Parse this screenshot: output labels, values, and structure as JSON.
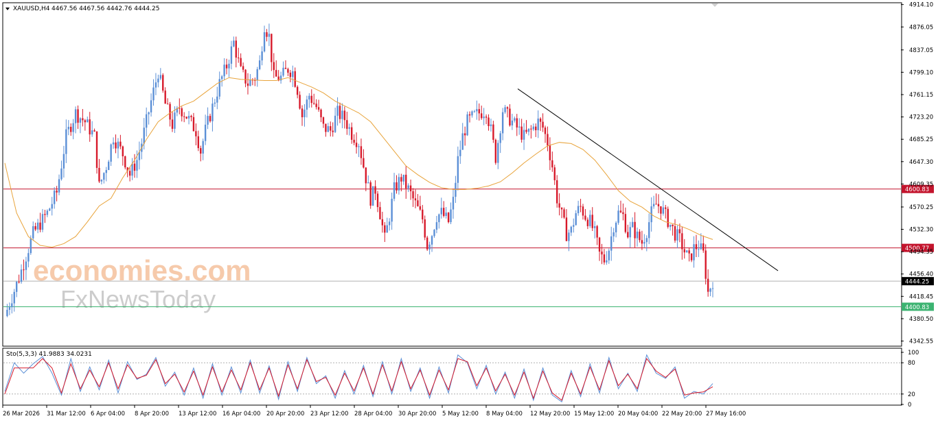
{
  "header": {
    "symbol": "XAUUSD,H4",
    "ohlc": "4467.56 4467.56 4442.76 4444.25"
  },
  "indicator": {
    "label": "Sto(5,3,3) 41.9883 34.0231",
    "levels": [
      "100",
      "80",
      "20",
      "0"
    ]
  },
  "watermark": {
    "line1": "economies.com",
    "line2": "FxNewsToday"
  },
  "colors": {
    "bull": "#5b8fd6",
    "bear": "#d7192a",
    "ma": "#e8a33a",
    "resistance": "#c3142d",
    "support": "#3cb371",
    "trendline": "#000000",
    "stoch_main": "#5b8fd6",
    "stoch_signal": "#d7192a"
  },
  "chart_data": {
    "type": "candlestick",
    "y_range": [
      4335,
      4916
    ],
    "y_ticks": [
      "4914.10",
      "4876.05",
      "4837.05",
      "4799.10",
      "4761.15",
      "4723.20",
      "4685.25",
      "4647.30",
      "4609.35",
      "4570.25",
      "4532.30",
      "4494.35",
      "4456.40",
      "4418.45",
      "4380.50",
      "4342.55"
    ],
    "x_labels": [
      "26 Mar 2026",
      "31 Mar 12:00",
      "6 Apr 04:00",
      "8 Apr 20:00",
      "13 Apr 12:00",
      "16 Apr 04:00",
      "20 Apr 20:00",
      "23 Apr 12:00",
      "28 Apr 04:00",
      "30 Apr 20:00",
      "5 May 12:00",
      "8 May 04:00",
      "12 May 20:00",
      "15 May 12:00",
      "20 May 04:00",
      "22 May 20:00",
      "27 May 16:00"
    ],
    "horizontal_levels": [
      {
        "value": 4600.83,
        "label": "4600.83",
        "role": "resistance"
      },
      {
        "value": 4500.77,
        "label": "4500.77",
        "role": "resistance"
      },
      {
        "value": 4444.25,
        "label": "4444.25",
        "role": "current"
      },
      {
        "value": 4400.83,
        "label": "4400.83",
        "role": "support"
      }
    ],
    "price_path": [
      [
        0,
        4385
      ],
      [
        6,
        4450
      ],
      [
        12,
        4525
      ],
      [
        18,
        4560
      ],
      [
        22,
        4595
      ],
      [
        26,
        4690
      ],
      [
        30,
        4730
      ],
      [
        34,
        4715
      ],
      [
        38,
        4690
      ],
      [
        40,
        4605
      ],
      [
        43,
        4640
      ],
      [
        46,
        4690
      ],
      [
        50,
        4660
      ],
      [
        53,
        4625
      ],
      [
        56,
        4650
      ],
      [
        58,
        4680
      ],
      [
        62,
        4750
      ],
      [
        65,
        4800
      ],
      [
        68,
        4745
      ],
      [
        71,
        4710
      ],
      [
        74,
        4740
      ],
      [
        77,
        4725
      ],
      [
        81,
        4700
      ],
      [
        83,
        4665
      ],
      [
        85,
        4700
      ],
      [
        88,
        4740
      ],
      [
        91,
        4780
      ],
      [
        94,
        4810
      ],
      [
        97,
        4850
      ],
      [
        100,
        4800
      ],
      [
        103,
        4780
      ],
      [
        106,
        4790
      ],
      [
        108,
        4815
      ],
      [
        110,
        4880
      ],
      [
        112,
        4860
      ],
      [
        114,
        4790
      ],
      [
        117,
        4790
      ],
      [
        120,
        4805
      ],
      [
        122,
        4800
      ],
      [
        124,
        4770
      ],
      [
        126,
        4725
      ],
      [
        129,
        4760
      ],
      [
        132,
        4740
      ],
      [
        135,
        4705
      ],
      [
        138,
        4700
      ],
      [
        141,
        4730
      ],
      [
        144,
        4720
      ],
      [
        147,
        4695
      ],
      [
        150,
        4680
      ],
      [
        153,
        4620
      ],
      [
        155,
        4585
      ],
      [
        157,
        4600
      ],
      [
        159,
        4560
      ],
      [
        161,
        4515
      ],
      [
        163,
        4555
      ],
      [
        165,
        4600
      ],
      [
        168,
        4620
      ],
      [
        171,
        4600
      ],
      [
        174,
        4575
      ],
      [
        177,
        4550
      ],
      [
        179,
        4505
      ],
      [
        181,
        4525
      ],
      [
        183,
        4555
      ],
      [
        185,
        4560
      ],
      [
        188,
        4545
      ],
      [
        190,
        4580
      ],
      [
        192,
        4650
      ],
      [
        194,
        4690
      ],
      [
        196,
        4715
      ],
      [
        199,
        4725
      ],
      [
        201,
        4730
      ],
      [
        204,
        4735
      ],
      [
        206,
        4700
      ],
      [
        208,
        4655
      ],
      [
        211,
        4735
      ],
      [
        214,
        4720
      ],
      [
        217,
        4705
      ],
      [
        220,
        4690
      ],
      [
        223,
        4700
      ],
      [
        226,
        4715
      ],
      [
        228,
        4705
      ],
      [
        230,
        4680
      ],
      [
        232,
        4640
      ],
      [
        234,
        4585
      ],
      [
        236,
        4555
      ],
      [
        238,
        4525
      ],
      [
        240,
        4530
      ],
      [
        242,
        4560
      ],
      [
        244,
        4570
      ],
      [
        246,
        4555
      ],
      [
        248,
        4545
      ],
      [
        250,
        4525
      ],
      [
        252,
        4490
      ],
      [
        254,
        4480
      ],
      [
        256,
        4500
      ],
      [
        258,
        4540
      ],
      [
        260,
        4560
      ],
      [
        262,
        4555
      ],
      [
        264,
        4525
      ],
      [
        266,
        4535
      ],
      [
        268,
        4520
      ],
      [
        270,
        4510
      ],
      [
        272,
        4530
      ],
      [
        274,
        4560
      ],
      [
        276,
        4575
      ],
      [
        278,
        4570
      ],
      [
        280,
        4555
      ],
      [
        282,
        4540
      ],
      [
        284,
        4525
      ],
      [
        286,
        4515
      ],
      [
        288,
        4495
      ],
      [
        290,
        4480
      ],
      [
        292,
        4500
      ],
      [
        294,
        4505
      ],
      [
        296,
        4490
      ],
      [
        298,
        4425
      ],
      [
        300,
        4445
      ],
      [
        301,
        4450
      ]
    ],
    "moving_average": [
      [
        0,
        4645
      ],
      [
        5,
        4560
      ],
      [
        10,
        4520
      ],
      [
        15,
        4505
      ],
      [
        20,
        4502
      ],
      [
        25,
        4508
      ],
      [
        30,
        4520
      ],
      [
        35,
        4545
      ],
      [
        40,
        4572
      ],
      [
        45,
        4585
      ],
      [
        50,
        4620
      ],
      [
        55,
        4650
      ],
      [
        60,
        4685
      ],
      [
        65,
        4715
      ],
      [
        70,
        4730
      ],
      [
        75,
        4742
      ],
      [
        80,
        4750
      ],
      [
        85,
        4765
      ],
      [
        90,
        4780
      ],
      [
        95,
        4790
      ],
      [
        100,
        4787
      ],
      [
        105,
        4786
      ],
      [
        110,
        4785
      ],
      [
        115,
        4785
      ],
      [
        120,
        4790
      ],
      [
        125,
        4782
      ],
      [
        130,
        4774
      ],
      [
        135,
        4764
      ],
      [
        140,
        4750
      ],
      [
        145,
        4740
      ],
      [
        150,
        4730
      ],
      [
        155,
        4715
      ],
      [
        160,
        4690
      ],
      [
        165,
        4665
      ],
      [
        170,
        4640
      ],
      [
        175,
        4625
      ],
      [
        180,
        4612
      ],
      [
        185,
        4603
      ],
      [
        190,
        4600
      ],
      [
        195,
        4600
      ],
      [
        200,
        4602
      ],
      [
        205,
        4606
      ],
      [
        210,
        4613
      ],
      [
        215,
        4628
      ],
      [
        220,
        4645
      ],
      [
        225,
        4660
      ],
      [
        230,
        4674
      ],
      [
        235,
        4680
      ],
      [
        240,
        4678
      ],
      [
        245,
        4668
      ],
      [
        250,
        4650
      ],
      [
        255,
        4625
      ],
      [
        260,
        4598
      ],
      [
        265,
        4580
      ],
      [
        270,
        4570
      ],
      [
        275,
        4555
      ],
      [
        280,
        4545
      ],
      [
        285,
        4540
      ],
      [
        290,
        4532
      ],
      [
        295,
        4522
      ],
      [
        300,
        4515
      ]
    ],
    "trendline": [
      [
        4754,
        4771
      ],
      [
        4459,
        4462
      ]
    ],
    "stochastic": {
      "main_label": "41.9883",
      "signal_label": "34.0231",
      "main": [
        [
          0,
          25
        ],
        [
          4,
          80
        ],
        [
          8,
          60
        ],
        [
          12,
          78
        ],
        [
          16,
          92
        ],
        [
          20,
          60
        ],
        [
          24,
          18
        ],
        [
          28,
          88
        ],
        [
          32,
          25
        ],
        [
          36,
          72
        ],
        [
          40,
          28
        ],
        [
          44,
          85
        ],
        [
          48,
          22
        ],
        [
          52,
          82
        ],
        [
          56,
          48
        ],
        [
          60,
          58
        ],
        [
          64,
          90
        ],
        [
          68,
          35
        ],
        [
          72,
          62
        ],
        [
          76,
          18
        ],
        [
          80,
          70
        ],
        [
          84,
          12
        ],
        [
          88,
          78
        ],
        [
          92,
          18
        ],
        [
          96,
          72
        ],
        [
          100,
          22
        ],
        [
          104,
          85
        ],
        [
          108,
          22
        ],
        [
          112,
          74
        ],
        [
          116,
          10
        ],
        [
          120,
          82
        ],
        [
          124,
          25
        ],
        [
          128,
          90
        ],
        [
          132,
          40
        ],
        [
          136,
          55
        ],
        [
          140,
          12
        ],
        [
          144,
          65
        ],
        [
          148,
          20
        ],
        [
          152,
          75
        ],
        [
          156,
          15
        ],
        [
          160,
          82
        ],
        [
          164,
          20
        ],
        [
          168,
          88
        ],
        [
          172,
          25
        ],
        [
          176,
          70
        ],
        [
          180,
          12
        ],
        [
          184,
          72
        ],
        [
          188,
          22
        ],
        [
          192,
          95
        ],
        [
          196,
          80
        ],
        [
          200,
          30
        ],
        [
          204,
          75
        ],
        [
          208,
          20
        ],
        [
          212,
          62
        ],
        [
          216,
          12
        ],
        [
          220,
          68
        ],
        [
          224,
          8
        ],
        [
          228,
          70
        ],
        [
          232,
          18
        ],
        [
          236,
          5
        ],
        [
          240,
          65
        ],
        [
          244,
          15
        ],
        [
          248,
          78
        ],
        [
          252,
          22
        ],
        [
          256,
          90
        ],
        [
          260,
          30
        ],
        [
          264,
          60
        ],
        [
          268,
          25
        ],
        [
          272,
          95
        ],
        [
          276,
          60
        ],
        [
          280,
          50
        ],
        [
          284,
          72
        ],
        [
          288,
          12
        ],
        [
          292,
          25
        ],
        [
          296,
          20
        ],
        [
          300,
          40
        ]
      ],
      "signal": [
        [
          0,
          20
        ],
        [
          4,
          70
        ],
        [
          8,
          70
        ],
        [
          12,
          70
        ],
        [
          16,
          88
        ],
        [
          20,
          70
        ],
        [
          24,
          22
        ],
        [
          28,
          78
        ],
        [
          32,
          30
        ],
        [
          36,
          66
        ],
        [
          40,
          34
        ],
        [
          44,
          80
        ],
        [
          48,
          30
        ],
        [
          52,
          76
        ],
        [
          56,
          50
        ],
        [
          60,
          56
        ],
        [
          64,
          86
        ],
        [
          68,
          40
        ],
        [
          72,
          58
        ],
        [
          76,
          24
        ],
        [
          80,
          64
        ],
        [
          84,
          18
        ],
        [
          88,
          72
        ],
        [
          92,
          24
        ],
        [
          96,
          66
        ],
        [
          100,
          28
        ],
        [
          104,
          80
        ],
        [
          108,
          28
        ],
        [
          112,
          70
        ],
        [
          116,
          16
        ],
        [
          120,
          76
        ],
        [
          124,
          30
        ],
        [
          128,
          86
        ],
        [
          132,
          44
        ],
        [
          136,
          52
        ],
        [
          140,
          18
        ],
        [
          144,
          60
        ],
        [
          148,
          26
        ],
        [
          152,
          70
        ],
        [
          156,
          20
        ],
        [
          160,
          76
        ],
        [
          164,
          26
        ],
        [
          168,
          82
        ],
        [
          172,
          30
        ],
        [
          176,
          66
        ],
        [
          180,
          18
        ],
        [
          184,
          66
        ],
        [
          188,
          28
        ],
        [
          192,
          88
        ],
        [
          196,
          82
        ],
        [
          200,
          36
        ],
        [
          204,
          70
        ],
        [
          208,
          26
        ],
        [
          212,
          58
        ],
        [
          216,
          18
        ],
        [
          220,
          62
        ],
        [
          224,
          12
        ],
        [
          228,
          64
        ],
        [
          232,
          22
        ],
        [
          236,
          8
        ],
        [
          240,
          60
        ],
        [
          244,
          20
        ],
        [
          248,
          72
        ],
        [
          252,
          28
        ],
        [
          256,
          84
        ],
        [
          260,
          36
        ],
        [
          264,
          58
        ],
        [
          268,
          30
        ],
        [
          272,
          88
        ],
        [
          276,
          64
        ],
        [
          280,
          52
        ],
        [
          284,
          68
        ],
        [
          288,
          18
        ],
        [
          292,
          22
        ],
        [
          296,
          24
        ],
        [
          300,
          34
        ]
      ]
    }
  }
}
